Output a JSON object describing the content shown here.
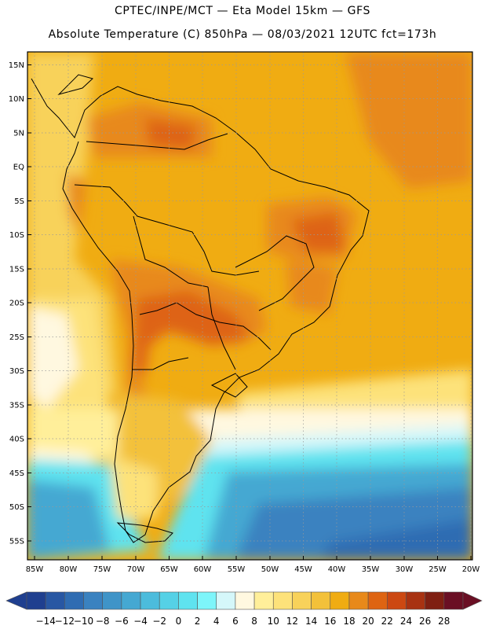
{
  "title": {
    "line1": "CPTEC/INPE/MCT —  Eta Model 15km — GFS",
    "line2": "Absolute Temperature (C) 850hPa — 08/03/2021 12UTC fct=173h"
  },
  "map": {
    "lat_labels": [
      "15N",
      "10N",
      "5N",
      "EQ",
      "5S",
      "10S",
      "15S",
      "20S",
      "25S",
      "30S",
      "35S",
      "40S",
      "45S",
      "50S",
      "55S"
    ],
    "lon_labels": [
      "85W",
      "80W",
      "75W",
      "70W",
      "65W",
      "60W",
      "55W",
      "50W",
      "45W",
      "40W",
      "35W",
      "30W",
      "25W",
      "20W"
    ]
  },
  "colorbar": {
    "labels": [
      "-14",
      "-12",
      "-10",
      "-8",
      "-6",
      "-4",
      "-2",
      "0",
      "2",
      "4",
      "6",
      "8",
      "10",
      "12",
      "14",
      "16",
      "18",
      "20",
      "22",
      "24",
      "26",
      "28"
    ],
    "colors": [
      "#1f3f8f",
      "#2857a3",
      "#2f6cb2",
      "#3a82c0",
      "#3f94c8",
      "#45a8d2",
      "#4cbcdc",
      "#55d1e6",
      "#5fe3ef",
      "#7df5fa",
      "#d5f7fa",
      "#fff8e0",
      "#ffef9a",
      "#fde27a",
      "#f8d25a",
      "#f3c13a",
      "#f0ac12",
      "#e8891a",
      "#de6412",
      "#cc4812",
      "#a83212",
      "#7f1f12",
      "#6a0f24"
    ]
  }
}
